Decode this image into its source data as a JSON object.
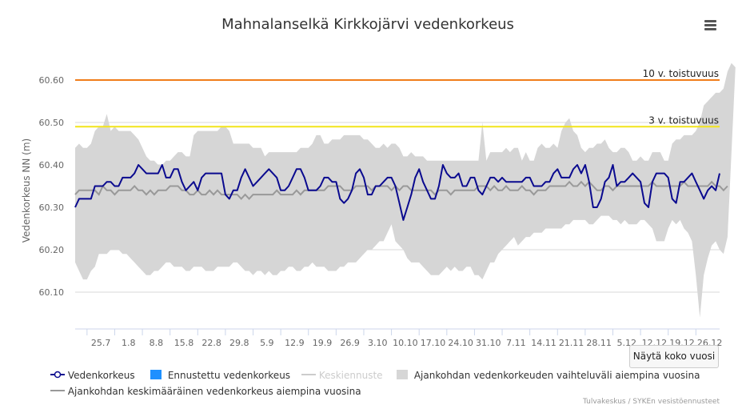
{
  "chart_data": {
    "type": "line",
    "title": "Mahnalanselkä Kirkkojärvi vedenkorkeus",
    "ylabel": "Vedenkorkeus NN (m)",
    "ylim": [
      60.05,
      60.65
    ],
    "yticks": [
      "60.10",
      "60.20",
      "60.30",
      "60.40",
      "60.50",
      "60.60"
    ],
    "xtick_labels": [
      "25.7",
      "1.8",
      "8.8",
      "15.8",
      "22.8",
      "29.8",
      "5.9",
      "12.9",
      "19.9",
      "26.9",
      "3.10",
      "10.10",
      "17.10",
      "24.10",
      "31.10",
      "7.11",
      "14.11",
      "21.11",
      "28.11",
      "5.12",
      "12.12",
      "19.12",
      "26.12"
    ],
    "grid": true,
    "legend_position": "bottom",
    "colors": {
      "observed": "#0a0a8f",
      "forecast": "#1e90ff",
      "median_forecast": "#cccccc",
      "range": "#d6d6d6",
      "average": "#999999",
      "threshold_10": "#f07d1a",
      "threshold_3": "#f2e41c"
    },
    "thresholds": [
      {
        "label": "10 v. toistuvuus",
        "value": 60.6
      },
      {
        "label": "3 v. toistuvuus",
        "value": 60.49
      }
    ],
    "series": [
      {
        "name": "Vedenkorkeus",
        "values": [
          60.3,
          60.32,
          60.32,
          60.32,
          60.32,
          60.35,
          60.35,
          60.35,
          60.36,
          60.36,
          60.35,
          60.35,
          60.37,
          60.37,
          60.37,
          60.38,
          60.4,
          60.39,
          60.38,
          60.38,
          60.38,
          60.38,
          60.4,
          60.37,
          60.37,
          60.39,
          60.39,
          60.36,
          60.34,
          60.35,
          60.36,
          60.34,
          60.37,
          60.38,
          60.38,
          60.38,
          60.38,
          60.38,
          60.33,
          60.32,
          60.34,
          60.34,
          60.37,
          60.39,
          60.37,
          60.35,
          60.36,
          60.37,
          60.38,
          60.39,
          60.38,
          60.37,
          60.34,
          60.34,
          60.35,
          60.37,
          60.39,
          60.39,
          60.37,
          60.34,
          60.34,
          60.34,
          60.35,
          60.37,
          60.37,
          60.36,
          60.36,
          60.32,
          60.31,
          60.32,
          60.34,
          60.38,
          60.39,
          60.37,
          60.33,
          60.33,
          60.35,
          60.35,
          60.36,
          60.37,
          60.37,
          60.35,
          60.31,
          60.27,
          60.3,
          60.33,
          60.37,
          60.39,
          60.36,
          60.34,
          60.32,
          60.32,
          60.35,
          60.4,
          60.38,
          60.37,
          60.37,
          60.38,
          60.35,
          60.35,
          60.37,
          60.37,
          60.34,
          60.33,
          60.35,
          60.37,
          60.37,
          60.36,
          60.37,
          60.36,
          60.36,
          60.36,
          60.36,
          60.36,
          60.37,
          60.37,
          60.35,
          60.35,
          60.35,
          60.36,
          60.36,
          60.38,
          60.39,
          60.37,
          60.37,
          60.37,
          60.39,
          60.4,
          60.38,
          60.4,
          60.36,
          60.3,
          60.3,
          60.32,
          60.36,
          60.37,
          60.4,
          60.35,
          60.36,
          60.36,
          60.37,
          60.38,
          60.37,
          60.36,
          60.31,
          60.3,
          60.36,
          60.38,
          60.38,
          60.38,
          60.37,
          60.32,
          60.31,
          60.36,
          60.36,
          60.37,
          60.38,
          60.36,
          60.34,
          60.32,
          60.34,
          60.35,
          60.34,
          60.38
        ]
      },
      {
        "name": "Ennustettu vedenkorkeus",
        "values": []
      },
      {
        "name": "Keskiennuste",
        "values": []
      },
      {
        "name": "Ajankohdan vedenkorkeuden vaihteluväli aiempina vuosina",
        "upper": [
          60.44,
          60.45,
          60.44,
          60.44,
          60.45,
          60.48,
          60.49,
          60.49,
          60.52,
          60.48,
          60.49,
          60.48,
          60.48,
          60.48,
          60.48,
          60.47,
          60.46,
          60.44,
          60.42,
          60.41,
          60.41,
          60.4,
          60.4,
          60.41,
          60.41,
          60.42,
          60.43,
          60.43,
          60.42,
          60.42,
          60.47,
          60.48,
          60.48,
          60.48,
          60.48,
          60.48,
          60.48,
          60.49,
          60.49,
          60.48,
          60.45,
          60.45,
          60.45,
          60.45,
          60.45,
          60.44,
          60.44,
          60.44,
          60.42,
          60.43,
          60.43,
          60.43,
          60.43,
          60.43,
          60.43,
          60.43,
          60.43,
          60.44,
          60.44,
          60.44,
          60.45,
          60.47,
          60.47,
          60.45,
          60.45,
          60.46,
          60.46,
          60.46,
          60.47,
          60.47,
          60.47,
          60.47,
          60.47,
          60.46,
          60.46,
          60.45,
          60.44,
          60.44,
          60.45,
          60.44,
          60.45,
          60.45,
          60.44,
          60.42,
          60.42,
          60.43,
          60.42,
          60.42,
          60.42,
          60.41,
          60.41,
          60.41,
          60.41,
          60.41,
          60.41,
          60.41,
          60.41,
          60.41,
          60.41,
          60.41,
          60.41,
          60.41,
          60.41,
          60.5,
          60.41,
          60.43,
          60.43,
          60.43,
          60.43,
          60.44,
          60.43,
          60.44,
          60.44,
          60.41,
          60.43,
          60.41,
          60.41,
          60.44,
          60.45,
          60.44,
          60.44,
          60.45,
          60.44,
          60.48,
          60.5,
          60.51,
          60.48,
          60.47,
          60.44,
          60.43,
          60.44,
          60.44,
          60.45,
          60.45,
          60.46,
          60.44,
          60.43,
          60.43,
          60.44,
          60.44,
          60.43,
          60.41,
          60.41,
          60.42,
          60.41,
          60.41,
          60.43,
          60.43,
          60.43,
          60.41,
          60.41,
          60.45,
          60.46,
          60.46,
          60.47,
          60.47,
          60.47,
          60.48,
          60.5,
          60.54,
          60.55,
          60.56,
          60.57,
          60.57,
          60.58,
          60.62,
          60.64,
          60.63
        ]
      },
      {
        "name": "Ajankohdan vedenkorkeuden vaihteluväli aiempina vuosina (alaraja)",
        "lower": [
          60.17,
          60.15,
          60.13,
          60.13,
          60.15,
          60.16,
          60.19,
          60.19,
          60.19,
          60.2,
          60.2,
          60.2,
          60.19,
          60.19,
          60.18,
          60.17,
          60.16,
          60.15,
          60.14,
          60.14,
          60.15,
          60.15,
          60.16,
          60.17,
          60.17,
          60.16,
          60.16,
          60.16,
          60.15,
          60.15,
          60.16,
          60.16,
          60.16,
          60.15,
          60.15,
          60.15,
          60.16,
          60.16,
          60.16,
          60.16,
          60.17,
          60.17,
          60.16,
          60.15,
          60.15,
          60.14,
          60.15,
          60.15,
          60.14,
          60.15,
          60.14,
          60.14,
          60.15,
          60.15,
          60.16,
          60.16,
          60.15,
          60.15,
          60.16,
          60.16,
          60.17,
          60.16,
          60.16,
          60.16,
          60.15,
          60.15,
          60.15,
          60.16,
          60.16,
          60.17,
          60.17,
          60.17,
          60.18,
          60.19,
          60.2,
          60.2,
          60.21,
          60.22,
          60.22,
          60.24,
          60.26,
          60.22,
          60.21,
          60.2,
          60.18,
          60.17,
          60.17,
          60.17,
          60.16,
          60.15,
          60.14,
          60.14,
          60.14,
          60.15,
          60.16,
          60.15,
          60.16,
          60.15,
          60.15,
          60.16,
          60.16,
          60.14,
          60.14,
          60.13,
          60.15,
          60.17,
          60.17,
          60.19,
          60.2,
          60.21,
          60.22,
          60.23,
          60.21,
          60.22,
          60.23,
          60.23,
          60.24,
          60.24,
          60.24,
          60.25,
          60.25,
          60.25,
          60.25,
          60.25,
          60.26,
          60.26,
          60.27,
          60.27,
          60.27,
          60.27,
          60.26,
          60.26,
          60.27,
          60.28,
          60.28,
          60.28,
          60.27,
          60.27,
          60.26,
          60.27,
          60.26,
          60.26,
          60.26,
          60.27,
          60.27,
          60.26,
          60.25,
          60.22,
          60.22,
          60.22,
          60.25,
          60.27,
          60.26,
          60.27,
          60.25,
          60.24,
          60.22,
          60.14,
          60.04,
          60.14,
          60.18,
          60.21,
          60.22,
          60.2,
          60.19,
          60.23
        ]
      },
      {
        "name": "Ajankohdan keskimääräinen vedenkorkeus aiempina vuosina",
        "values": [
          60.33,
          60.34,
          60.34,
          60.34,
          60.34,
          60.34,
          60.33,
          60.35,
          60.34,
          60.34,
          60.33,
          60.34,
          60.34,
          60.34,
          60.34,
          60.35,
          60.34,
          60.34,
          60.33,
          60.34,
          60.33,
          60.34,
          60.34,
          60.34,
          60.35,
          60.35,
          60.35,
          60.34,
          60.34,
          60.33,
          60.33,
          60.34,
          60.33,
          60.33,
          60.34,
          60.33,
          60.34,
          60.33,
          60.33,
          60.33,
          60.33,
          60.33,
          60.32,
          60.33,
          60.32,
          60.33,
          60.33,
          60.33,
          60.33,
          60.33,
          60.33,
          60.34,
          60.33,
          60.33,
          60.33,
          60.33,
          60.34,
          60.33,
          60.34,
          60.34,
          60.34,
          60.34,
          60.34,
          60.34,
          60.35,
          60.35,
          60.35,
          60.35,
          60.34,
          60.34,
          60.34,
          60.35,
          60.35,
          60.35,
          60.35,
          60.34,
          60.35,
          60.35,
          60.35,
          60.35,
          60.34,
          60.35,
          60.34,
          60.35,
          60.35,
          60.34,
          60.34,
          60.34,
          60.34,
          60.34,
          60.34,
          60.33,
          60.34,
          60.34,
          60.34,
          60.33,
          60.34,
          60.34,
          60.34,
          60.34,
          60.34,
          60.34,
          60.35,
          60.35,
          60.35,
          60.34,
          60.35,
          60.34,
          60.34,
          60.35,
          60.34,
          60.34,
          60.34,
          60.35,
          60.34,
          60.34,
          60.33,
          60.34,
          60.34,
          60.34,
          60.35,
          60.35,
          60.35,
          60.35,
          60.35,
          60.36,
          60.35,
          60.35,
          60.36,
          60.35,
          60.36,
          60.35,
          60.34,
          60.34,
          60.35,
          60.35,
          60.34,
          60.35,
          60.35,
          60.35,
          60.35,
          60.35,
          60.35,
          60.35,
          60.35,
          60.35,
          60.36,
          60.35,
          60.35,
          60.35,
          60.35,
          60.35,
          60.35,
          60.35,
          60.36,
          60.35,
          60.35,
          60.35,
          60.35,
          60.35,
          60.35,
          60.36,
          60.35,
          60.35,
          60.34,
          60.35
        ]
      }
    ]
  },
  "ui": {
    "show_full_year_button": "Näytä koko vuosi",
    "menu_icon": "hamburger-menu-icon",
    "credits": "Tulvakeskus / SYKEn vesistöennusteet"
  },
  "legend": {
    "observed": "Vedenkorkeus",
    "forecast": "Ennustettu vedenkorkeus",
    "median": "Keskiennuste",
    "range": "Ajankohdan vedenkorkeuden vaihteluväli aiempina vuosina",
    "average": "Ajankohdan keskimääräinen vedenkorkeus aiempina vuosina"
  }
}
